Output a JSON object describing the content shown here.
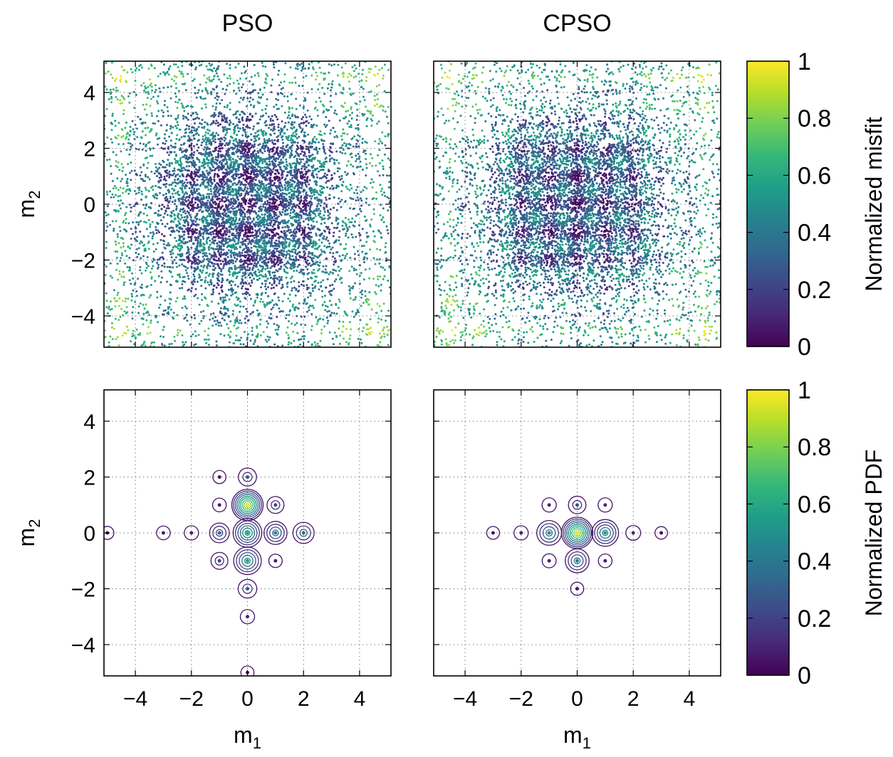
{
  "figure": {
    "titles": [
      "PSO",
      "CPSO"
    ],
    "xlabel_main": "m",
    "xlabel_sub": "1",
    "ylabel_main": "m",
    "ylabel_sub": "2"
  },
  "colors": {
    "viridis": [
      "#440154",
      "#482878",
      "#3e4989",
      "#31688e",
      "#26828e",
      "#1f9e89",
      "#35b779",
      "#6ece58",
      "#b5de2b",
      "#fde725"
    ],
    "grid": "#7a7a7a",
    "frame": "#000000"
  },
  "colorbars": [
    {
      "label": "Normalized misfit",
      "ticks": [
        0,
        0.2,
        0.4,
        0.6,
        0.8,
        1
      ],
      "tick_labels": [
        "0",
        "0.2",
        "0.4",
        "0.6",
        "0.8",
        "1"
      ]
    },
    {
      "label": "Normalized PDF",
      "ticks": [
        0,
        0.2,
        0.4,
        0.6,
        0.8,
        1
      ],
      "tick_labels": [
        "0",
        "0.2",
        "0.4",
        "0.6",
        "0.8",
        "1"
      ]
    }
  ],
  "chart_data": [
    {
      "type": "scatter",
      "title": "PSO",
      "xlabel": "",
      "ylabel": "m2",
      "xlim": [
        -5.12,
        5.12
      ],
      "ylim": [
        -5.12,
        5.12
      ],
      "yticks": [
        -4,
        -2,
        0,
        2,
        4
      ],
      "ytick_labels": [
        "−4",
        "−2",
        "0",
        "2",
        "4"
      ],
      "grid": true,
      "color_variable": "Normalized misfit",
      "minima_grid": [
        -2,
        -1,
        0,
        1,
        2
      ]
    },
    {
      "type": "scatter",
      "title": "CPSO",
      "xlabel": "",
      "ylabel": "",
      "xlim": [
        -5.12,
        5.12
      ],
      "ylim": [
        -5.12,
        5.12
      ],
      "grid": true,
      "color_variable": "Normalized misfit",
      "minima_grid": [
        -2,
        -1,
        0,
        1,
        2
      ]
    },
    {
      "type": "contour",
      "xlabel": "m1",
      "ylabel": "m2",
      "xlim": [
        -5.12,
        5.12
      ],
      "ylim": [
        -5.12,
        5.12
      ],
      "xticks": [
        -4,
        -2,
        0,
        2,
        4
      ],
      "xtick_labels": [
        "−4",
        "−2",
        "0",
        "2",
        "4"
      ],
      "yticks": [
        -4,
        -2,
        0,
        2,
        4
      ],
      "ytick_labels": [
        "−4",
        "−2",
        "0",
        "2",
        "4"
      ],
      "grid": true,
      "color_variable": "Normalized PDF",
      "modes": [
        {
          "x": 0,
          "y": 1,
          "peak": 1.0
        },
        {
          "x": 0,
          "y": 0,
          "peak": 0.62
        },
        {
          "x": 0,
          "y": -1,
          "peak": 0.58
        },
        {
          "x": 1,
          "y": 0,
          "peak": 0.42
        },
        {
          "x": -1,
          "y": 0,
          "peak": 0.3
        },
        {
          "x": 2,
          "y": 0,
          "peak": 0.35
        },
        {
          "x": 0,
          "y": 2,
          "peak": 0.24
        },
        {
          "x": 0,
          "y": -2,
          "peak": 0.26
        },
        {
          "x": 1,
          "y": 1,
          "peak": 0.2
        },
        {
          "x": -1,
          "y": -1,
          "peak": 0.2
        },
        {
          "x": -1,
          "y": 1,
          "peak": 0.08
        },
        {
          "x": 1,
          "y": -1,
          "peak": 0.07
        },
        {
          "x": -2,
          "y": 0,
          "peak": 0.1
        },
        {
          "x": 0,
          "y": -3,
          "peak": 0.1
        },
        {
          "x": -3,
          "y": 0,
          "peak": 0.08
        },
        {
          "x": -1,
          "y": 2,
          "peak": 0.06
        },
        {
          "x": -5,
          "y": 0,
          "peak": 0.06
        },
        {
          "x": 0,
          "y": -5,
          "peak": 0.06
        }
      ]
    },
    {
      "type": "contour",
      "xlabel": "m1",
      "ylabel": "",
      "xlim": [
        -5.12,
        5.12
      ],
      "ylim": [
        -5.12,
        5.12
      ],
      "xticks": [
        -4,
        -2,
        0,
        2,
        4
      ],
      "xtick_labels": [
        "−4",
        "−2",
        "0",
        "2",
        "4"
      ],
      "grid": true,
      "color_variable": "Normalized PDF",
      "modes": [
        {
          "x": 0,
          "y": 0,
          "peak": 1.0
        },
        {
          "x": 1,
          "y": 0,
          "peak": 0.55
        },
        {
          "x": -1,
          "y": 0,
          "peak": 0.48
        },
        {
          "x": 0,
          "y": -1,
          "peak": 0.45
        },
        {
          "x": 0,
          "y": 1,
          "peak": 0.22
        },
        {
          "x": -1,
          "y": 1,
          "peak": 0.1
        },
        {
          "x": 1,
          "y": 1,
          "peak": 0.1
        },
        {
          "x": 2,
          "y": 0,
          "peak": 0.12
        },
        {
          "x": -2,
          "y": 0,
          "peak": 0.1
        },
        {
          "x": -1,
          "y": -1,
          "peak": 0.09
        },
        {
          "x": 1,
          "y": -1,
          "peak": 0.08
        },
        {
          "x": 0,
          "y": -2,
          "peak": 0.06
        },
        {
          "x": -3,
          "y": 0,
          "peak": 0.05
        },
        {
          "x": 3,
          "y": 0,
          "peak": 0.04
        }
      ]
    }
  ]
}
